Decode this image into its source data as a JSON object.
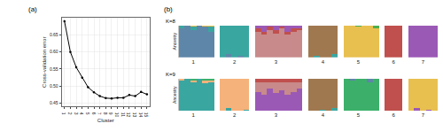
{
  "chart_data": [
    {
      "type": "line",
      "title": "(a)",
      "xlabel": "Cluster",
      "ylabel": "Cross-validation error",
      "x": [
        1,
        2,
        3,
        4,
        5,
        6,
        7,
        8,
        9,
        10,
        11,
        12,
        13,
        14,
        15
      ],
      "values": [
        0.69,
        0.6,
        0.555,
        0.525,
        0.497,
        0.482,
        0.471,
        0.465,
        0.464,
        0.466,
        0.466,
        0.474,
        0.471,
        0.483,
        0.476
      ],
      "color": "#000000",
      "marker": "circle",
      "line_style": "solid",
      "grid": true,
      "xlim": [
        0.5,
        15.5
      ],
      "xticks": [
        1,
        2,
        3,
        4,
        5,
        6,
        7,
        8,
        9,
        10,
        11,
        12,
        13,
        14,
        15
      ],
      "ylim": [
        0.44,
        0.7
      ],
      "yticks": [
        {
          "value": 0.45,
          "label": "0.45"
        },
        {
          "value": 0.5,
          "label": "0.50"
        },
        {
          "value": 0.55,
          "label": "0.55"
        },
        {
          "value": 0.6,
          "label": "0.60"
        },
        {
          "value": 0.65,
          "label": "0.65"
        }
      ]
    },
    {
      "type": "bar",
      "title": "(b)",
      "subtitle": "K=8",
      "ylabel": "Ancestry",
      "stacked": true,
      "tick_labels": "x",
      "ylim": [
        0,
        1
      ],
      "categories": [
        null,
        null,
        "1",
        null,
        null,
        null,
        null,
        null,
        null,
        "2",
        null,
        null,
        null,
        null,
        null,
        null,
        "3",
        null,
        null,
        null,
        null,
        null,
        null,
        null,
        "4",
        null,
        null,
        null,
        null,
        null,
        "5",
        null,
        null,
        null,
        null,
        null,
        "6",
        null,
        null,
        null,
        null,
        "7",
        null,
        null
      ],
      "series": [
        {
          "color": "#5e86a8",
          "values": [
            0.9,
            1,
            0.85,
            1,
            0.95,
            0.8,
            null,
            0,
            0.1,
            0,
            0.05,
            0,
            null,
            0,
            0,
            0,
            0,
            0,
            0,
            0,
            0,
            null,
            0,
            0,
            0,
            0,
            0,
            null,
            0,
            0,
            0,
            0,
            0,
            0,
            null,
            0,
            0,
            0,
            null,
            0,
            0,
            0,
            0,
            0
          ]
        },
        {
          "color": "#3aa6a0",
          "values": [
            0.1,
            0,
            0.1,
            0,
            0,
            0.15,
            null,
            1,
            0.9,
            1,
            0.95,
            1,
            null,
            0,
            0,
            0,
            0,
            0,
            0,
            0,
            0,
            null,
            0,
            0.05,
            0,
            0,
            0.1,
            null,
            0,
            0,
            0,
            0,
            0,
            0,
            null,
            0,
            0,
            0,
            null,
            0,
            0,
            0,
            0,
            0
          ]
        },
        {
          "color": "#c88a8a",
          "values": [
            0,
            0,
            0,
            0,
            0,
            0,
            null,
            0,
            0,
            0,
            0,
            0,
            null,
            0.8,
            0.7,
            0.85,
            0.75,
            0.9,
            0.7,
            0.8,
            0.85,
            null,
            0,
            0,
            0,
            0,
            0,
            null,
            0,
            0,
            0,
            0,
            0,
            0,
            null,
            0,
            0,
            0,
            null,
            0,
            0,
            0,
            0,
            0
          ]
        },
        {
          "color": "#a07850",
          "values": [
            0,
            0,
            0,
            0,
            0,
            0,
            null,
            0,
            0,
            0,
            0,
            0,
            null,
            0,
            0,
            0,
            0,
            0,
            0,
            0,
            0,
            null,
            1,
            0.95,
            1,
            1,
            0.9,
            null,
            0,
            0,
            0,
            0,
            0,
            0,
            null,
            0,
            0,
            0,
            null,
            0,
            0,
            0,
            0,
            0
          ]
        },
        {
          "color": "#e8c050",
          "values": [
            0,
            0,
            0.05,
            0,
            0.05,
            0.05,
            null,
            0,
            0,
            0,
            0,
            0,
            null,
            0,
            0,
            0,
            0,
            0,
            0,
            0,
            0,
            null,
            0,
            0,
            0,
            0,
            0,
            null,
            1,
            1,
            0.95,
            1,
            1,
            0.9,
            null,
            0,
            0,
            0,
            null,
            0,
            0,
            0,
            0,
            0
          ]
        },
        {
          "color": "#c0504d",
          "values": [
            0,
            0,
            0,
            0,
            0,
            0,
            null,
            0,
            0,
            0,
            0,
            0,
            null,
            0.1,
            0.1,
            0.1,
            0.1,
            0.05,
            0.1,
            0.1,
            0.05,
            null,
            0,
            0,
            0,
            0,
            0,
            null,
            0,
            0,
            0,
            0,
            0,
            0,
            null,
            1,
            1,
            1,
            null,
            0,
            0,
            0,
            0,
            0
          ]
        },
        {
          "color": "#9b59b6",
          "values": [
            0,
            0,
            0,
            0,
            0,
            0,
            null,
            0,
            0,
            0,
            0,
            0,
            null,
            0.1,
            0.2,
            0.05,
            0.15,
            0.05,
            0.2,
            0.1,
            0.1,
            null,
            0,
            0,
            0,
            0,
            0,
            null,
            0,
            0,
            0,
            0,
            0,
            0,
            null,
            0,
            0,
            0,
            null,
            1,
            1,
            1,
            1,
            1
          ]
        },
        {
          "color": "#4caf50",
          "values": [
            0,
            0,
            0,
            0,
            0,
            0,
            null,
            0,
            0,
            0,
            0,
            0,
            null,
            0,
            0,
            0,
            0,
            0,
            0,
            0,
            0,
            null,
            0,
            0,
            0,
            0,
            0,
            null,
            0,
            0,
            0.05,
            0,
            0,
            0.1,
            null,
            0,
            0,
            0,
            null,
            0,
            0,
            0,
            0,
            0
          ]
        }
      ]
    },
    {
      "type": "bar",
      "subtitle": "K=9",
      "ylabel": "Ancestry",
      "stacked": true,
      "tick_labels": "x",
      "ylim": [
        0,
        1
      ],
      "categories": [
        null,
        null,
        "1",
        null,
        null,
        null,
        null,
        null,
        null,
        "2",
        null,
        null,
        null,
        null,
        null,
        null,
        "3",
        null,
        null,
        null,
        null,
        null,
        null,
        null,
        "4",
        null,
        null,
        null,
        null,
        null,
        "5",
        null,
        null,
        null,
        null,
        null,
        "6",
        null,
        null,
        null,
        null,
        "7",
        null,
        null
      ],
      "series": [
        {
          "color": "#3aa6a0",
          "values": [
            0.95,
            1,
            0.9,
            1,
            0.85,
            0.9,
            null,
            0,
            0.1,
            0,
            0,
            0.05,
            null,
            0,
            0,
            0,
            0,
            0,
            0,
            0,
            0,
            null,
            0,
            0,
            0.05,
            0,
            0.1,
            null,
            0,
            0,
            0,
            0,
            0,
            0,
            null,
            0,
            0,
            0,
            null,
            0,
            0,
            0,
            0,
            0
          ]
        },
        {
          "color": "#f5b27a",
          "values": [
            0.05,
            0,
            0.05,
            0,
            0.1,
            0.05,
            null,
            1,
            0.9,
            1,
            1,
            0.95,
            null,
            0,
            0,
            0,
            0,
            0,
            0,
            0,
            0,
            null,
            0,
            0,
            0,
            0,
            0,
            null,
            0,
            0,
            0,
            0,
            0,
            0,
            null,
            0,
            0,
            0,
            null,
            0,
            0,
            0,
            0,
            0
          ]
        },
        {
          "color": "#9b59b6",
          "values": [
            0,
            0,
            0,
            0,
            0,
            0,
            null,
            0,
            0,
            0,
            0,
            0,
            null,
            0.6,
            0.5,
            0.7,
            0.55,
            0.65,
            0.5,
            0.6,
            0.7,
            null,
            0,
            0,
            0,
            0,
            0,
            null,
            0,
            0,
            0,
            0,
            0,
            0,
            null,
            0,
            0,
            0,
            null,
            0,
            0.1,
            0,
            0.05,
            0
          ]
        },
        {
          "color": "#c88a8a",
          "values": [
            0,
            0,
            0,
            0,
            0,
            0,
            null,
            0,
            0,
            0,
            0,
            0,
            null,
            0.3,
            0.4,
            0.2,
            0.35,
            0.25,
            0.4,
            0.3,
            0.2,
            null,
            0,
            0,
            0,
            0,
            0,
            null,
            0,
            0,
            0,
            0,
            0,
            0,
            null,
            0,
            0,
            0,
            null,
            0,
            0,
            0,
            0,
            0
          ]
        },
        {
          "color": "#a07850",
          "values": [
            0,
            0,
            0,
            0,
            0,
            0,
            null,
            0,
            0,
            0,
            0,
            0,
            null,
            0,
            0,
            0,
            0,
            0,
            0,
            0,
            0,
            null,
            1,
            1,
            0.95,
            1,
            0.9,
            null,
            0,
            0,
            0,
            0,
            0,
            0,
            null,
            0,
            0,
            0,
            null,
            0,
            0,
            0,
            0,
            0
          ]
        },
        {
          "color": "#3cb06a",
          "values": [
            0,
            0,
            0.05,
            0,
            0.05,
            0.05,
            null,
            0,
            0,
            0,
            0,
            0,
            null,
            0,
            0,
            0,
            0,
            0,
            0,
            0,
            0,
            null,
            0,
            0,
            0,
            0,
            0,
            null,
            1,
            0.95,
            1,
            1,
            0.9,
            1,
            null,
            0,
            0,
            0,
            null,
            0,
            0,
            0,
            0,
            0
          ]
        },
        {
          "color": "#c0504d",
          "values": [
            0,
            0,
            0,
            0,
            0,
            0,
            null,
            0,
            0,
            0,
            0,
            0,
            null,
            0.1,
            0.1,
            0.1,
            0.1,
            0.1,
            0.1,
            0.1,
            0.1,
            null,
            0,
            0,
            0,
            0,
            0,
            null,
            0,
            0,
            0,
            0,
            0,
            0,
            null,
            1,
            1,
            1,
            null,
            0,
            0,
            0,
            0,
            0
          ]
        },
        {
          "color": "#e8c050",
          "values": [
            0,
            0,
            0,
            0,
            0,
            0,
            null,
            0,
            0,
            0,
            0,
            0,
            null,
            0,
            0,
            0,
            0,
            0,
            0,
            0,
            0,
            null,
            0,
            0,
            0,
            0,
            0,
            null,
            0,
            0,
            0,
            0,
            0,
            0,
            null,
            0,
            0,
            0,
            null,
            1,
            0.9,
            1,
            0.95,
            1
          ]
        },
        {
          "color": "#5e86a8",
          "values": [
            0,
            0,
            0,
            0,
            0,
            0,
            null,
            0,
            0,
            0,
            0,
            0,
            null,
            0,
            0,
            0,
            0,
            0,
            0,
            0,
            0,
            null,
            0,
            0,
            0,
            0,
            0,
            null,
            0,
            0.05,
            0,
            0,
            0.1,
            0,
            null,
            0,
            0,
            0,
            null,
            0,
            0,
            0,
            0,
            0
          ]
        }
      ]
    }
  ]
}
